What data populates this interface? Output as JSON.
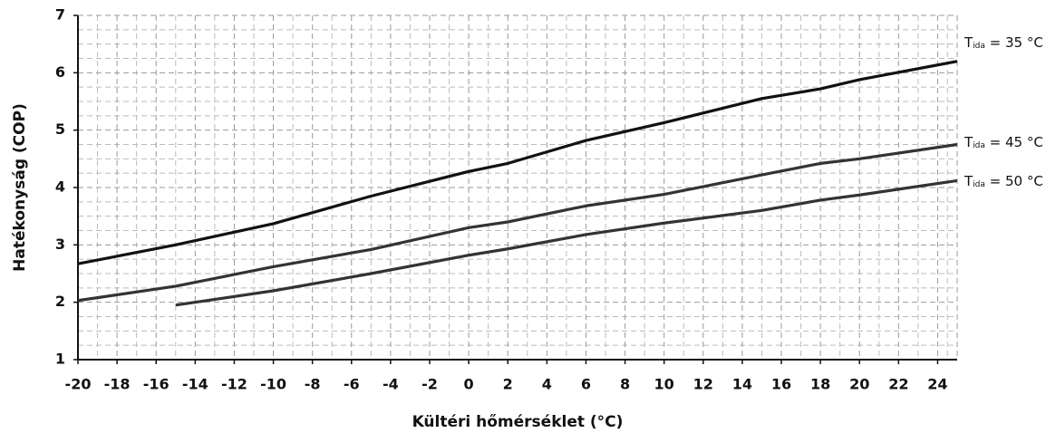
{
  "chart_data": {
    "type": "line",
    "x_label": "Kültéri hőmérséklet (°C)",
    "y_label": "Hatékonyság (COP)",
    "x": [
      -20,
      -15,
      -10,
      -5,
      0,
      2,
      6,
      10,
      15,
      18,
      20,
      25
    ],
    "series": [
      {
        "label": {
          "main": "T",
          "sub": "ida",
          "rest": " = 35 °C"
        },
        "color": "#111111",
        "values": [
          2.67,
          3.0,
          3.37,
          3.85,
          4.28,
          4.42,
          4.82,
          5.13,
          5.55,
          5.72,
          5.88,
          6.2
        ]
      },
      {
        "label": {
          "main": "T",
          "sub": "ida",
          "rest": " = 45 °C"
        },
        "color": "#333333",
        "values": [
          2.03,
          2.28,
          2.62,
          2.92,
          3.3,
          3.4,
          3.68,
          3.88,
          4.22,
          4.42,
          4.5,
          4.75
        ]
      },
      {
        "label": {
          "main": "T",
          "sub": "ida",
          "rest": " = 50 °C"
        },
        "color": "#333333",
        "values": [
          null,
          1.95,
          2.2,
          2.5,
          2.82,
          2.93,
          3.18,
          3.38,
          3.6,
          3.78,
          3.87,
          4.12
        ]
      }
    ],
    "xlim": [
      -20,
      25
    ],
    "xticks": [
      -20,
      -18,
      -16,
      -14,
      -12,
      -10,
      -8,
      -6,
      -4,
      -2,
      0,
      2,
      4,
      6,
      8,
      10,
      12,
      14,
      16,
      18,
      20,
      22,
      24
    ],
    "ylim": [
      1,
      7
    ],
    "yticks": [
      1,
      2,
      3,
      4,
      5,
      6,
      7
    ],
    "grid": true
  }
}
